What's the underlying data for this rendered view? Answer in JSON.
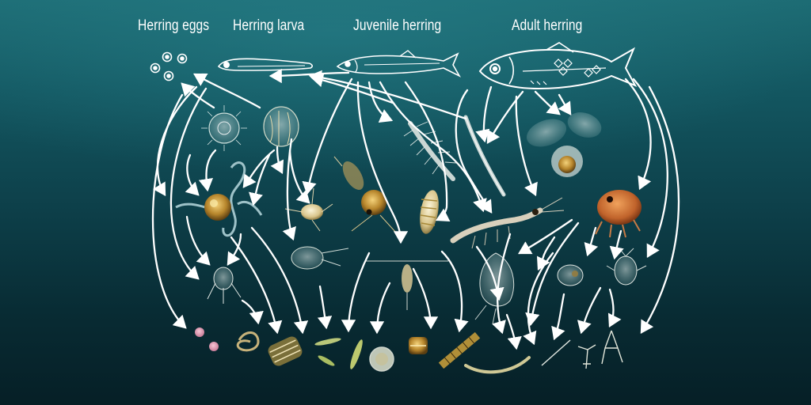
{
  "labels": {
    "herring_eggs": "Herring eggs",
    "herring_larva": "Herring larva",
    "juvenile_herring": "Juvenile herring",
    "adult_herring": "Adult herring"
  },
  "colors": {
    "background_top": "#1d6c74",
    "background_bottom": "#061f26",
    "arrows": "#ffffff",
    "outline_drawings": "#ffffff"
  }
}
